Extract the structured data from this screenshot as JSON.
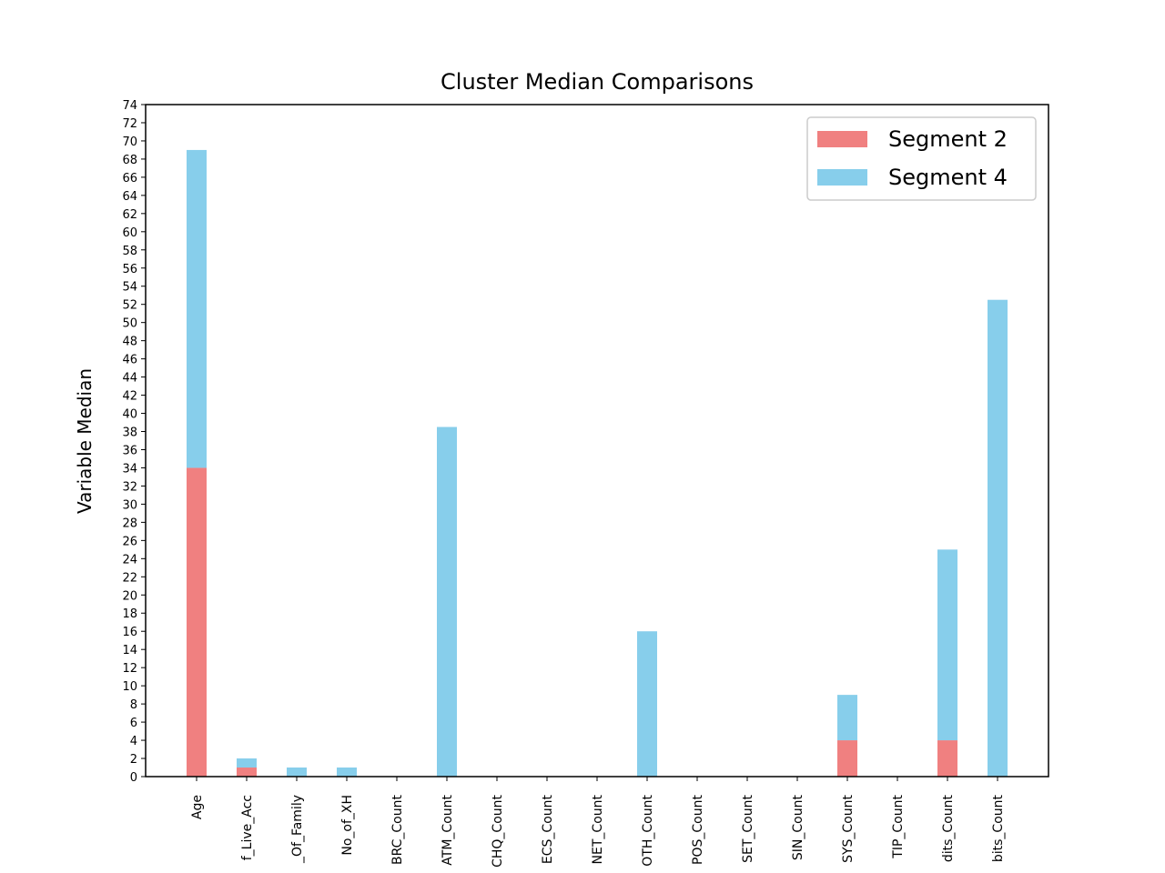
{
  "chart_data": {
    "type": "bar",
    "stacked": true,
    "title": "Cluster Median Comparisons",
    "xlabel": "",
    "ylabel": "Variable Median",
    "ylim": [
      0,
      74
    ],
    "ytick_step": 2,
    "grid": false,
    "legend_position": "top-right",
    "categories": [
      "Age",
      "f_Live_Acc",
      "_Of_Family",
      "No_of_XH",
      "BRC_Count",
      "ATM_Count",
      "CHQ_Count",
      "ECS_Count",
      "NET_Count",
      "OTH_Count",
      "POS_Count",
      "SET_Count",
      "SIN_Count",
      "SYS_Count",
      "TIP_Count",
      "dits_Count",
      "bits_Count"
    ],
    "series": [
      {
        "name": "Segment 2",
        "color": "#f08080",
        "values": [
          34,
          1,
          0,
          0,
          0,
          0,
          0,
          0,
          0,
          0,
          0,
          0,
          0,
          4,
          0,
          4,
          0
        ]
      },
      {
        "name": "Segment 4",
        "color": "#87ceeb",
        "values": [
          35,
          1,
          1,
          1,
          0,
          38.5,
          0,
          0,
          0,
          16,
          0,
          0,
          0,
          5,
          0,
          21,
          52.5
        ]
      }
    ]
  }
}
